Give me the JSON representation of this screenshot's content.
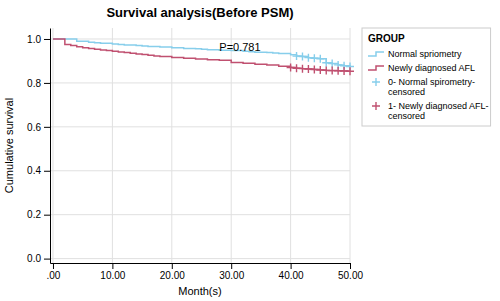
{
  "chart_data": {
    "type": "step",
    "title": "Survival analysis(Before PSM)",
    "x_label": "Month(s)",
    "y_label": "Cumulative survival",
    "xlim": [
      -0.5,
      50
    ],
    "ylim": [
      -0.02,
      1.05
    ],
    "xticks": [
      {
        "value": 0,
        "label": ".00"
      },
      {
        "value": 10,
        "label": "10.00"
      },
      {
        "value": 20,
        "label": "20.00"
      },
      {
        "value": 30,
        "label": "30.00"
      },
      {
        "value": 40,
        "label": "40.00"
      },
      {
        "value": 50,
        "label": "50.00"
      }
    ],
    "yticks": [
      {
        "value": 0.0,
        "label": "0.0"
      },
      0.2,
      0.4,
      0.6,
      0.8,
      {
        "value": 1.0,
        "label": "1.0"
      }
    ],
    "grid": true,
    "legend": "right",
    "legend_title": "GROUP",
    "annotations": [
      {
        "text": "P=0.781",
        "x": 28,
        "y": 0.945
      }
    ],
    "series": [
      {
        "name": "Normal spriometry",
        "type": "step",
        "color": "#87CEEB",
        "x": [
          0,
          2,
          4,
          5,
          6,
          7,
          8,
          10,
          11,
          12,
          14,
          15,
          16,
          18,
          20,
          22,
          24,
          25,
          26,
          28,
          30,
          32,
          33,
          34,
          36,
          37,
          38,
          40,
          41,
          42,
          43,
          44,
          45,
          46,
          47,
          48,
          49,
          50
        ],
        "values": [
          1.0,
          1.0,
          0.99,
          0.99,
          0.985,
          0.983,
          0.98,
          0.977,
          0.975,
          0.973,
          0.97,
          0.968,
          0.966,
          0.964,
          0.96,
          0.957,
          0.955,
          0.953,
          0.951,
          0.949,
          0.947,
          0.944,
          0.942,
          0.94,
          0.938,
          0.936,
          0.934,
          0.928,
          0.922,
          0.92,
          0.915,
          0.912,
          0.91,
          0.892,
          0.888,
          0.882,
          0.878,
          0.875
        ]
      },
      {
        "name": "Newly diagnosed AFL",
        "type": "step",
        "color": "#C05070",
        "x": [
          0,
          1,
          2,
          3,
          4,
          5,
          6,
          7,
          8,
          9,
          10,
          11,
          12,
          13,
          14,
          15,
          16,
          17,
          18,
          20,
          22,
          24,
          26,
          28,
          30,
          32,
          34,
          36,
          38,
          40,
          41,
          42,
          43,
          44,
          45,
          46,
          47,
          48,
          49,
          50
        ],
        "values": [
          1.0,
          1.0,
          0.975,
          0.97,
          0.965,
          0.96,
          0.957,
          0.953,
          0.95,
          0.947,
          0.944,
          0.941,
          0.938,
          0.935,
          0.932,
          0.929,
          0.926,
          0.923,
          0.92,
          0.916,
          0.912,
          0.909,
          0.906,
          0.903,
          0.893,
          0.889,
          0.885,
          0.881,
          0.876,
          0.87,
          0.867,
          0.865,
          0.863,
          0.861,
          0.859,
          0.857,
          0.856,
          0.855,
          0.854,
          0.853
        ]
      },
      {
        "name": "0- Normal spirometry-\ncensored",
        "type": "scatter",
        "marker": "plus",
        "color": "#87CEEB",
        "x": [
          41,
          42,
          43,
          44,
          45,
          46,
          47,
          48,
          49,
          50
        ],
        "values": [
          0.922,
          0.92,
          0.915,
          0.912,
          0.91,
          0.892,
          0.888,
          0.882,
          0.878,
          0.875
        ]
      },
      {
        "name": "1- Newly diagnosed AFL-\ncensored",
        "type": "scatter",
        "marker": "plus",
        "color": "#C05070",
        "x": [
          40,
          41,
          42,
          43,
          44,
          45,
          46,
          47,
          48,
          49,
          50
        ],
        "values": [
          0.87,
          0.867,
          0.865,
          0.863,
          0.861,
          0.859,
          0.857,
          0.856,
          0.855,
          0.854,
          0.853
        ]
      }
    ]
  }
}
